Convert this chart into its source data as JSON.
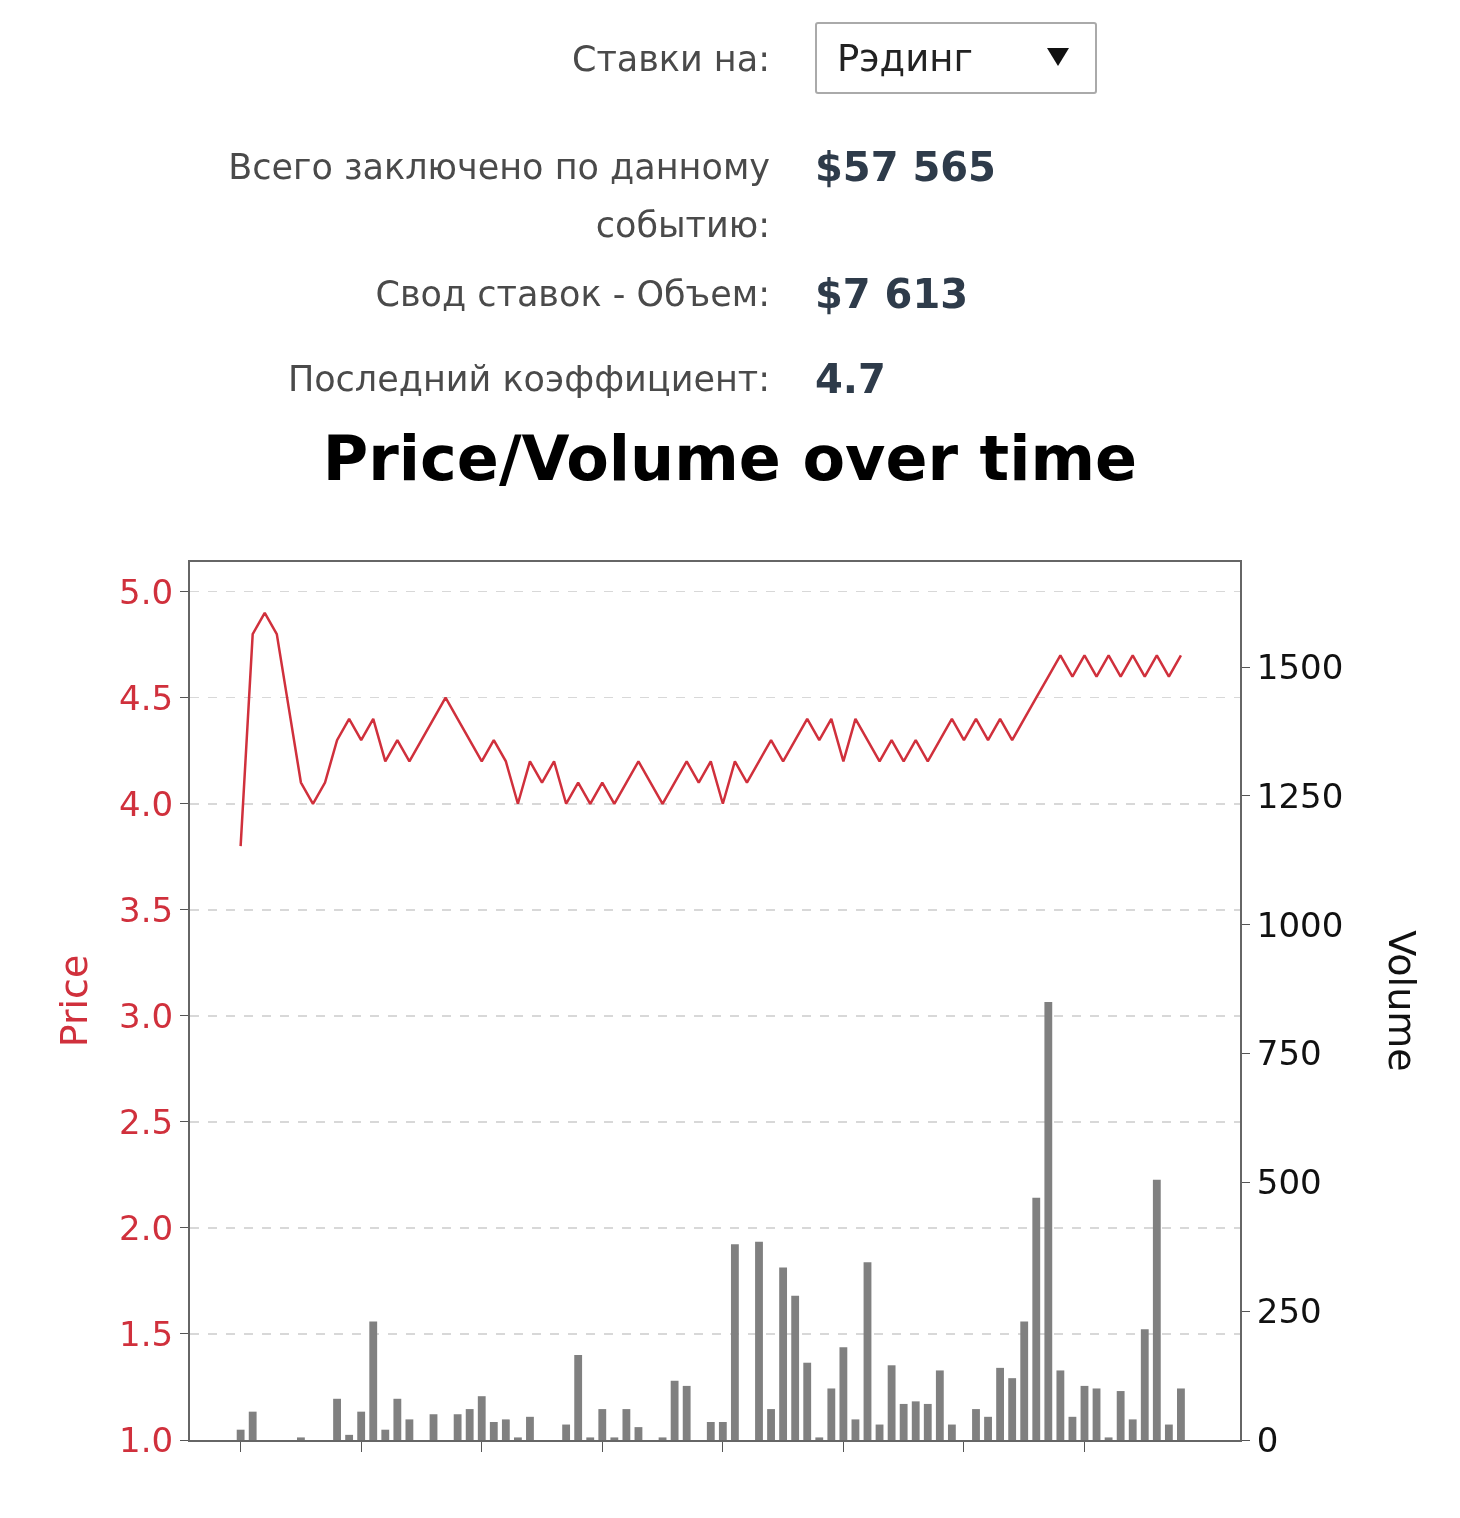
{
  "chart_data": [
    {
      "type": "other",
      "annotations": [
        "Ставки на:",
        "Рэдинг",
        "Всего заключено по данному событию:",
        "$57 565",
        "Свод ставок - Объем:",
        "$7 613",
        "Последний коэффициент:",
        "4.7"
      ]
    },
    {
      "type": "bar",
      "title": "Price/Volume over time",
      "ylabel": "Price",
      "y2label": "Volume",
      "categories": [
        null,
        null,
        null,
        null,
        null,
        null,
        null,
        null,
        null,
        null,
        null,
        null,
        null,
        null,
        null,
        null,
        null,
        null,
        null,
        null,
        null,
        null,
        null,
        null,
        null,
        null,
        null,
        null,
        null,
        null,
        null,
        null,
        null,
        null,
        null,
        null,
        null,
        null,
        null,
        null,
        null,
        null,
        null,
        null,
        null,
        null,
        null,
        null,
        null,
        null,
        null,
        null,
        null,
        null,
        null,
        null,
        null,
        null,
        null,
        null,
        null,
        null,
        null,
        null,
        null,
        null,
        null,
        null,
        null,
        null,
        null,
        null,
        null,
        null,
        null,
        null,
        null,
        null,
        null
      ],
      "series": [
        {
          "type": "bar",
          "axis": "y2",
          "color": "#808080",
          "values": [
            20,
            55,
            0,
            0,
            0,
            5,
            0,
            0,
            80,
            10,
            55,
            230,
            20,
            80,
            40,
            0,
            50,
            0,
            50,
            60,
            85,
            35,
            40,
            5,
            45,
            0,
            0,
            30,
            165,
            5,
            60,
            5,
            60,
            25,
            0,
            5,
            115,
            105,
            0,
            35,
            35,
            380,
            0,
            385,
            60,
            335,
            280,
            150,
            5,
            100,
            180,
            40,
            345,
            30,
            145,
            70,
            75,
            70,
            135,
            30,
            0,
            60,
            45,
            140,
            120,
            230,
            470,
            850,
            135,
            45,
            105,
            100,
            5,
            95,
            40,
            215,
            505,
            30,
            100
          ]
        },
        {
          "type": "line",
          "color": "#d0303c",
          "values": [
            3.8,
            4.8,
            4.9,
            4.8,
            4.45,
            4.1,
            4.0,
            4.1,
            4.3,
            4.4,
            4.3,
            4.4,
            4.2,
            4.3,
            4.2,
            4.3,
            4.4,
            4.5,
            4.4,
            4.3,
            4.2,
            4.3,
            4.2,
            4.0,
            4.2,
            4.1,
            4.2,
            4.0,
            4.1,
            4.0,
            4.1,
            4.0,
            4.1,
            4.2,
            4.1,
            4.0,
            4.1,
            4.2,
            4.1,
            4.2,
            4.0,
            4.2,
            4.1,
            4.2,
            4.3,
            4.2,
            4.3,
            4.4,
            4.3,
            4.4,
            4.2,
            4.4,
            4.3,
            4.2,
            4.3,
            4.2,
            4.3,
            4.2,
            4.3,
            4.4,
            4.3,
            4.4,
            4.3,
            4.4,
            4.3,
            4.4,
            4.5,
            4.6,
            4.7,
            4.6,
            4.7,
            4.6,
            4.7,
            4.6,
            4.7,
            4.6,
            4.7,
            4.6,
            4.7
          ]
        }
      ],
      "ylim": [
        1,
        5.14
      ],
      "yticks": [
        {
          "value": 1,
          "label": "1.0"
        },
        {
          "value": 1.5,
          "label": "1.5"
        },
        {
          "value": 2,
          "label": "2.0"
        },
        {
          "value": 2.5,
          "label": "2.5"
        },
        {
          "value": 3,
          "label": "3.0"
        },
        {
          "value": 3.5,
          "label": "3.5"
        },
        {
          "value": 4,
          "label": "4.0"
        },
        {
          "value": 4.5,
          "label": "4.5"
        },
        {
          "value": 5,
          "label": "5.0"
        }
      ],
      "y2lim": [
        0,
        1704
      ],
      "y2ticks": [
        0,
        250,
        500,
        750,
        1000,
        1250,
        1500
      ],
      "grid": "y",
      "legend": false,
      "tick_labels": "y",
      "marker": "none",
      "line_style": "solid"
    }
  ]
}
